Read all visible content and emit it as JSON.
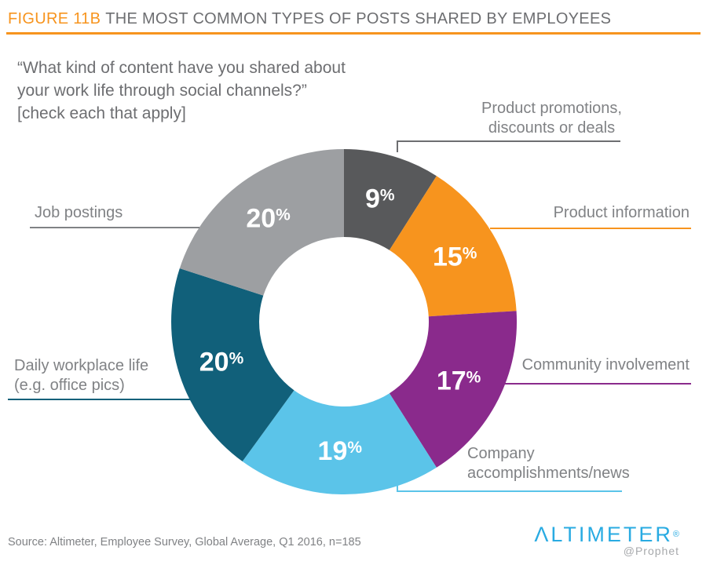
{
  "header": {
    "figure_label": "FIGURE 11B",
    "title": "THE MOST COMMON TYPES OF POSTS SHARED BY EMPLOYEES",
    "accent_color": "#F7941E"
  },
  "question": {
    "line1": "“What kind of content have you shared about",
    "line2": "your work life through social channels?”",
    "line3": "[check each that apply]"
  },
  "chart_data": {
    "type": "pie",
    "subtype": "donut",
    "title": "The most common types of posts shared by employees",
    "units": "%",
    "direction": "clockwise",
    "start_angle": "12 o'clock",
    "segments": [
      {
        "id": "product-promotions",
        "label": "Product promotions,\ndiscounts or deals",
        "value": 9,
        "color": "#58595B"
      },
      {
        "id": "product-information",
        "label": "Product information",
        "value": 15,
        "color": "#F7941E"
      },
      {
        "id": "community-involvement",
        "label": "Community involvement",
        "value": 17,
        "color": "#8A2A8C"
      },
      {
        "id": "company-accomplishments",
        "label": "Company\naccomplishments/news",
        "value": 19,
        "color": "#5BC4E9"
      },
      {
        "id": "daily-workplace-life",
        "label": "Daily workplace life\n(e.g. office pics)",
        "value": 20,
        "color": "#11607A"
      },
      {
        "id": "job-postings",
        "label": "Job postings",
        "value": 20,
        "color": "#9D9FA2"
      }
    ]
  },
  "source": "Source: Altimeter, Employee Survey, Global Average, Q1 2016, n=185",
  "logo": {
    "name": "ΛLTIMETER",
    "registered": "®",
    "sub": "@Prophet",
    "color": "#29ABE2"
  }
}
